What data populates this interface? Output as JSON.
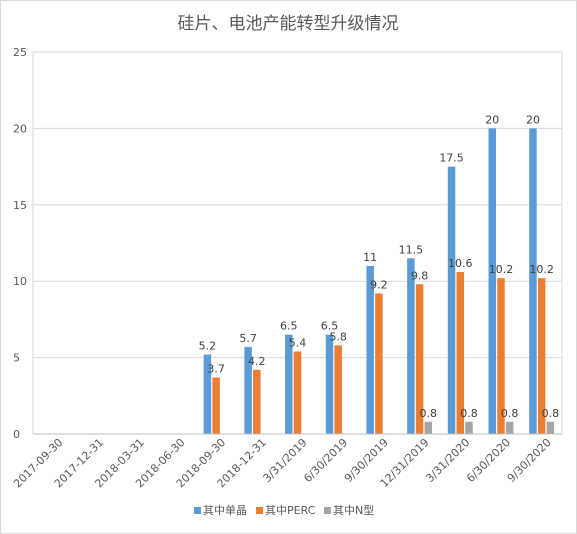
{
  "chart_data": {
    "type": "bar",
    "title": "硅片、电池产能转型升级情况",
    "xlabel": "",
    "ylabel": "",
    "ylim": [
      0,
      25
    ],
    "yticks": [
      0,
      5,
      10,
      15,
      20,
      25
    ],
    "grid": true,
    "legend_position": "bottom",
    "categories": [
      "2017-09-30",
      "2017-12-31",
      "2018-03-31",
      "2018-06-30",
      "2018-09-30",
      "2018-12-31",
      "3/31/2019",
      "6/30/2019",
      "9/30/2019",
      "12/31/2019",
      "3/31/2020",
      "6/30/2020",
      "9/30/2020"
    ],
    "series": [
      {
        "name": "其中单晶",
        "color": "#5b9bd5",
        "values": [
          null,
          null,
          null,
          null,
          5.2,
          5.7,
          6.5,
          6.5,
          11,
          11.5,
          17.5,
          20,
          20
        ]
      },
      {
        "name": "其中PERC",
        "color": "#ed7d31",
        "values": [
          null,
          null,
          null,
          null,
          3.7,
          4.2,
          5.4,
          5.8,
          9.2,
          9.8,
          10.6,
          10.2,
          10.2
        ]
      },
      {
        "name": "其中N型",
        "color": "#a5a5a5",
        "values": [
          null,
          null,
          null,
          null,
          null,
          null,
          null,
          null,
          null,
          0.8,
          0.8,
          0.8,
          0.8
        ]
      }
    ],
    "data_labels": [
      [
        "",
        "",
        "",
        "",
        "5.2",
        "5.7",
        "6.5",
        "6.5",
        "11",
        "11.5",
        "17.5",
        "20",
        "20"
      ],
      [
        "",
        "",
        "",
        "",
        "3.7",
        "4.2",
        "5.4",
        "5.8",
        "9.2",
        "9.8",
        "10.6",
        "10.2",
        "10.2"
      ],
      [
        "",
        "",
        "",
        "",
        "",
        "",
        "",
        "",
        "",
        "0.8",
        "0.8",
        "0.8",
        "0.8"
      ]
    ]
  }
}
